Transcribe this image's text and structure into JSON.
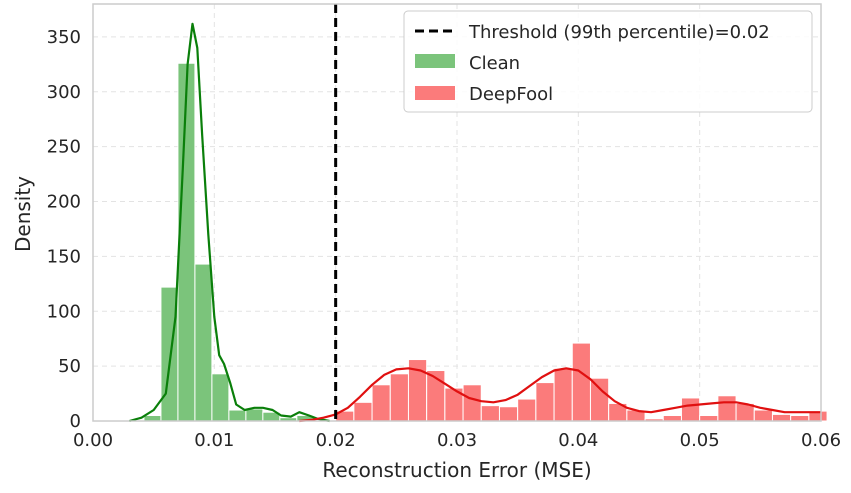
{
  "chart_data": {
    "type": "histogram",
    "title": "",
    "xlabel": "Reconstruction Error (MSE)",
    "ylabel": "Density",
    "xlim": [
      0.0,
      0.06
    ],
    "ylim": [
      0,
      380
    ],
    "xticks": [
      0.0,
      0.01,
      0.02,
      0.03,
      0.04,
      0.05,
      0.06
    ],
    "xtick_labels": [
      "0.00",
      "0.01",
      "0.02",
      "0.03",
      "0.04",
      "0.05",
      "0.06"
    ],
    "yticks": [
      0,
      50,
      100,
      150,
      200,
      250,
      300,
      350
    ],
    "ytick_labels": [
      "0",
      "50",
      "100",
      "150",
      "200",
      "250",
      "300",
      "350"
    ],
    "grid": true,
    "legend_position": "top-right",
    "threshold": {
      "label": "Threshold (99th percentile)=0.02",
      "x": 0.02,
      "style": "dashed",
      "color": "#000000"
    },
    "series": [
      {
        "name": "Clean",
        "color": "#4daf4a",
        "bar_fill": "#7bc47b",
        "kde_color": "#0a7f0a",
        "bin_width": 0.0014,
        "bin_starts": [
          0.0042,
          0.0056,
          0.007,
          0.0084,
          0.0098,
          0.0112,
          0.0126,
          0.014,
          0.0154,
          0.0168
        ],
        "values": [
          5,
          122,
          326,
          143,
          43,
          10,
          11,
          8,
          3,
          5
        ],
        "kde": {
          "x": [
            0.003,
            0.004,
            0.005,
            0.006,
            0.0068,
            0.0074,
            0.0078,
            0.0082,
            0.0086,
            0.009,
            0.0095,
            0.01,
            0.0104,
            0.0108,
            0.0113,
            0.0118,
            0.0125,
            0.0133,
            0.014,
            0.0148,
            0.0155,
            0.0163,
            0.017,
            0.0178,
            0.0185,
            0.0195
          ],
          "y": [
            0,
            3,
            10,
            25,
            95,
            230,
            325,
            362,
            340,
            260,
            170,
            95,
            60,
            52,
            35,
            15,
            10,
            12,
            12,
            10,
            5,
            4,
            8,
            5,
            2,
            0
          ]
        }
      },
      {
        "name": "DeepFool",
        "color": "#ff6b6b",
        "bar_fill": "#fb7b7b",
        "kde_color": "#e01010",
        "bin_width": 0.0015,
        "bin_starts": [
          0.02,
          0.0215,
          0.023,
          0.0245,
          0.026,
          0.0275,
          0.029,
          0.0305,
          0.032,
          0.0335,
          0.035,
          0.0365,
          0.038,
          0.0395,
          0.041,
          0.0425,
          0.044,
          0.0455,
          0.047,
          0.0485,
          0.05,
          0.0515,
          0.053,
          0.0545,
          0.056,
          0.0575,
          0.059
        ],
        "values": [
          9,
          17,
          33,
          43,
          56,
          46,
          30,
          33,
          14,
          13,
          20,
          35,
          48,
          71,
          39,
          16,
          10,
          2,
          5,
          21,
          5,
          23,
          16,
          10,
          6,
          5,
          9
        ],
        "kde": {
          "x": [
            0.017,
            0.018,
            0.019,
            0.02,
            0.021,
            0.022,
            0.023,
            0.024,
            0.025,
            0.026,
            0.027,
            0.028,
            0.029,
            0.03,
            0.031,
            0.032,
            0.033,
            0.034,
            0.035,
            0.036,
            0.037,
            0.038,
            0.039,
            0.04,
            0.041,
            0.042,
            0.043,
            0.044,
            0.045,
            0.046,
            0.047,
            0.048,
            0.049,
            0.05,
            0.051,
            0.052,
            0.053,
            0.054,
            0.055,
            0.056,
            0.057,
            0.058,
            0.059,
            0.06
          ],
          "y": [
            0,
            1,
            3,
            6,
            12,
            22,
            33,
            42,
            47,
            48,
            46,
            41,
            34,
            27,
            21,
            18,
            17,
            19,
            24,
            32,
            40,
            46,
            48,
            46,
            38,
            27,
            18,
            12,
            9,
            8,
            10,
            12,
            14,
            15,
            16,
            17,
            17,
            15,
            12,
            10,
            8,
            8,
            8,
            8
          ]
        }
      }
    ]
  }
}
